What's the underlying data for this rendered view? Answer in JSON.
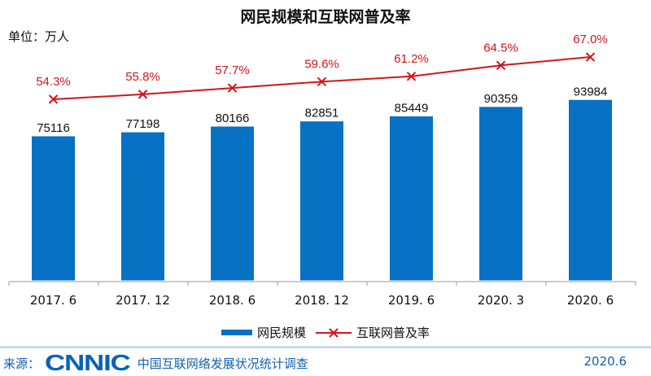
{
  "chart_data": {
    "type": "bar+line",
    "title": "网民规模和互联网普及率",
    "unit_label": "单位：万人",
    "categories": [
      "2017. 6",
      "2017. 12",
      "2018. 6",
      "2018. 12",
      "2019. 6",
      "2020. 3",
      "2020. 6"
    ],
    "series": [
      {
        "name": "网民规模",
        "type": "bar",
        "color": "#0771C4",
        "values": [
          75116,
          77198,
          80166,
          82851,
          85449,
          90359,
          93984
        ]
      },
      {
        "name": "互联网普及率",
        "type": "line",
        "color": "#D0161B",
        "values": [
          54.3,
          55.8,
          57.7,
          59.6,
          61.2,
          64.5,
          67.0
        ],
        "labels": [
          "54.3%",
          "55.8%",
          "57.7%",
          "59.6%",
          "61.2%",
          "64.5%",
          "67.0%"
        ]
      }
    ],
    "grid": false,
    "legend_position": "bottom"
  },
  "footer": {
    "source_label": "来源：",
    "logo": "CNNIC",
    "survey": "中国互联网络发展状况统计调查",
    "date": "2020.6"
  }
}
